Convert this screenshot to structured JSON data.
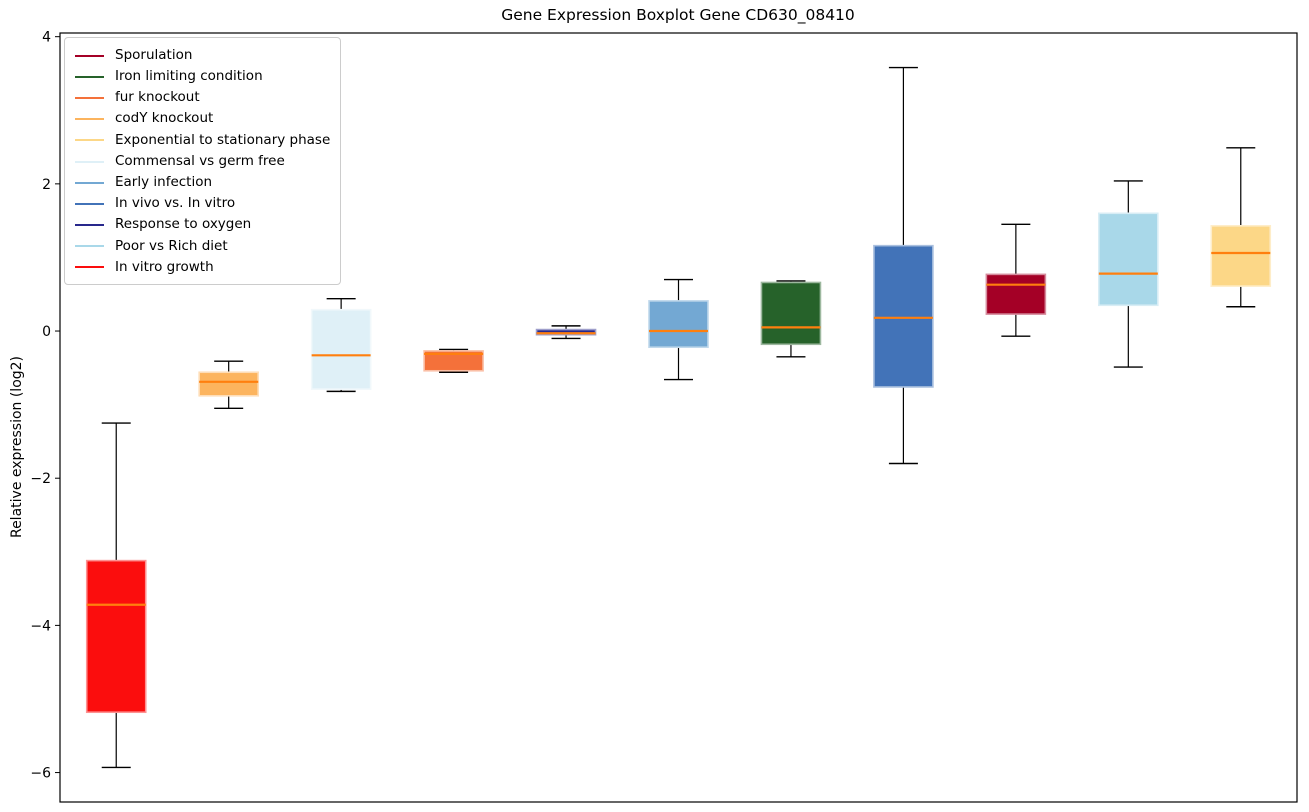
{
  "chart_data": {
    "type": "boxplot",
    "title": "Gene Expression Boxplot Gene CD630_08410",
    "ylabel": "Relative expression (log2)",
    "xlabel": "",
    "ylim": [
      -6.4,
      4.05
    ],
    "xlim": [
      0.5,
      11.5
    ],
    "yticks": [
      -6,
      -4,
      -2,
      0,
      2,
      4
    ],
    "ytick_labels": [
      "−6",
      "−4",
      "−2",
      "0",
      "2",
      "4"
    ],
    "xtick_labels": [],
    "grid": false,
    "legend_position": "upper left",
    "median_color": "#ff7f0e",
    "whisker_color": "#000000",
    "legend_order": [
      "Sporulation",
      "Iron limiting condition",
      "fur knockout",
      "codY knockout",
      "Exponential to stationary phase",
      "Commensal vs germ free",
      "Early infection",
      "In vivo vs. In vitro",
      "Response to oxygen",
      "Poor vs Rich diet",
      "In vitro growth"
    ],
    "series": [
      {
        "name": "In vitro growth",
        "position": 1,
        "color": "#fb0d0d",
        "whisker_low": -5.93,
        "q1": -5.18,
        "median": -3.72,
        "q3": -3.12,
        "whisker_high": -1.25
      },
      {
        "name": "codY knockout",
        "position": 2,
        "color": "#fcb45e",
        "whisker_low": -1.05,
        "q1": -0.88,
        "median": -0.69,
        "q3": -0.56,
        "whisker_high": -0.41
      },
      {
        "name": "Commensal vs germ free",
        "position": 3,
        "color": "#dff0f7",
        "whisker_low": -0.82,
        "q1": -0.79,
        "median": -0.33,
        "q3": 0.29,
        "whisker_high": 0.44
      },
      {
        "name": "fur knockout",
        "position": 4,
        "color": "#f4713a",
        "whisker_low": -0.56,
        "q1": -0.54,
        "median": -0.31,
        "q3": -0.27,
        "whisker_high": -0.25
      },
      {
        "name": "Response to oxygen",
        "position": 5,
        "color": "#28288c",
        "whisker_low": -0.1,
        "q1": -0.05,
        "median": -0.03,
        "q3": 0.02,
        "whisker_high": 0.07
      },
      {
        "name": "Early infection",
        "position": 6,
        "color": "#73a8d3",
        "whisker_low": -0.66,
        "q1": -0.22,
        "median": 0.0,
        "q3": 0.41,
        "whisker_high": 0.7
      },
      {
        "name": "Iron limiting condition",
        "position": 7,
        "color": "#26622a",
        "whisker_low": -0.35,
        "q1": -0.18,
        "median": 0.05,
        "q3": 0.66,
        "whisker_high": 0.68
      },
      {
        "name": "In vivo vs. In vitro",
        "position": 8,
        "color": "#4273b8",
        "whisker_low": -1.8,
        "q1": -0.76,
        "median": 0.18,
        "q3": 1.16,
        "whisker_high": 3.58
      },
      {
        "name": "Sporulation",
        "position": 9,
        "color": "#a40026",
        "whisker_low": -0.07,
        "q1": 0.23,
        "median": 0.63,
        "q3": 0.77,
        "whisker_high": 1.45
      },
      {
        "name": "Poor vs Rich diet",
        "position": 10,
        "color": "#a9d8e9",
        "whisker_low": -0.49,
        "q1": 0.35,
        "median": 0.78,
        "q3": 1.6,
        "whisker_high": 2.04
      },
      {
        "name": "Exponential to stationary phase",
        "position": 11,
        "color": "#fcd787",
        "whisker_low": 0.33,
        "q1": 0.61,
        "median": 1.06,
        "q3": 1.43,
        "whisker_high": 2.49
      }
    ]
  }
}
